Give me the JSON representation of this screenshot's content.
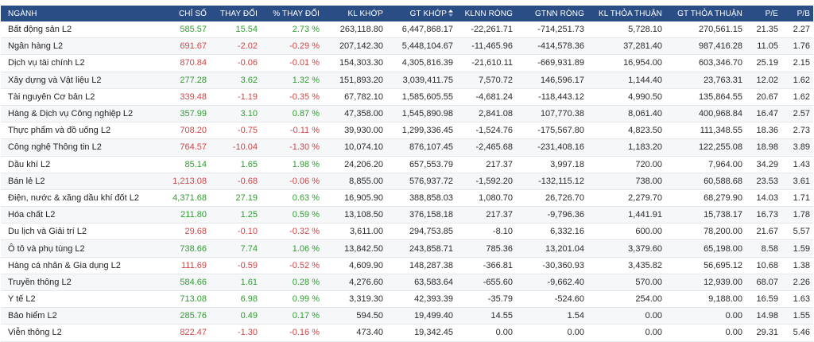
{
  "colors": {
    "header_bg": "#2b4d85",
    "up": "#2e9e2e",
    "down": "#d04545"
  },
  "table": {
    "columns": [
      "NGÀNH",
      "CHỈ SỐ",
      "THAY ĐỔI",
      "% THAY ĐỔI",
      "KL KHỚP",
      "GT KHỚP",
      "KLNN RÒNG",
      "GTNN RÒNG",
      "KL THỎA THUẬN",
      "GT THỎA THUẬN",
      "P/E",
      "P/B"
    ],
    "sort_column": "GT KHỚP",
    "sort_icon": "sort-arrows-icon",
    "rows": [
      {
        "name": "Bất động sản L2",
        "index": "585.57",
        "change": "15.54",
        "pct": "2.73 %",
        "dir": "up",
        "kl_khop": "263,118.80",
        "gt_khop": "6,447,868.17",
        "klnn": "-22,261.71",
        "gtnn": "-714,251.73",
        "kl_tt": "5,728.10",
        "gt_tt": "270,561.15",
        "pe": "21.35",
        "pb": "2.27"
      },
      {
        "name": "Ngân hàng L2",
        "index": "691.67",
        "change": "-2.02",
        "pct": "-0.29 %",
        "dir": "down",
        "kl_khop": "207,142.30",
        "gt_khop": "5,448,104.67",
        "klnn": "-11,465.96",
        "gtnn": "-414,578.36",
        "kl_tt": "37,281.40",
        "gt_tt": "987,416.28",
        "pe": "11.05",
        "pb": "1.76"
      },
      {
        "name": "Dịch vụ tài chính L2",
        "index": "870.84",
        "change": "-0.06",
        "pct": "-0.01 %",
        "dir": "down",
        "kl_khop": "154,303.30",
        "gt_khop": "4,305,816.39",
        "klnn": "-21,610.11",
        "gtnn": "-669,931.89",
        "kl_tt": "16,954.00",
        "gt_tt": "603,346.70",
        "pe": "25.19",
        "pb": "2.15"
      },
      {
        "name": "Xây dựng và Vật liệu L2",
        "index": "277.28",
        "change": "3.62",
        "pct": "1.32 %",
        "dir": "up",
        "kl_khop": "151,893.20",
        "gt_khop": "3,039,411.75",
        "klnn": "7,570.72",
        "gtnn": "146,596.17",
        "kl_tt": "1,144.40",
        "gt_tt": "23,763.31",
        "pe": "12.02",
        "pb": "1.62"
      },
      {
        "name": "Tài nguyên Cơ bản L2",
        "index": "339.48",
        "change": "-1.19",
        "pct": "-0.35 %",
        "dir": "down",
        "kl_khop": "67,782.10",
        "gt_khop": "1,585,605.55",
        "klnn": "-4,681.24",
        "gtnn": "-118,443.12",
        "kl_tt": "4,990.50",
        "gt_tt": "135,864.55",
        "pe": "20.67",
        "pb": "1.62"
      },
      {
        "name": "Hàng & Dịch vụ Công nghiệp L2",
        "index": "357.99",
        "change": "3.10",
        "pct": "0.87 %",
        "dir": "up",
        "kl_khop": "47,358.00",
        "gt_khop": "1,545,890.98",
        "klnn": "2,841.08",
        "gtnn": "107,770.38",
        "kl_tt": "8,061.40",
        "gt_tt": "400,968.84",
        "pe": "16.47",
        "pb": "2.57"
      },
      {
        "name": "Thực phẩm và đồ uống L2",
        "index": "708.20",
        "change": "-0.75",
        "pct": "-0.11 %",
        "dir": "down",
        "kl_khop": "39,930.00",
        "gt_khop": "1,299,336.45",
        "klnn": "-1,524.76",
        "gtnn": "-175,567.80",
        "kl_tt": "4,823.50",
        "gt_tt": "111,348.55",
        "pe": "18.36",
        "pb": "2.73"
      },
      {
        "name": "Công nghệ Thông tin L2",
        "index": "764.57",
        "change": "-10.04",
        "pct": "-1.30 %",
        "dir": "down",
        "kl_khop": "10,074.10",
        "gt_khop": "876,107.45",
        "klnn": "-2,465.68",
        "gtnn": "-231,408.16",
        "kl_tt": "1,183.20",
        "gt_tt": "122,255.08",
        "pe": "18.98",
        "pb": "3.89"
      },
      {
        "name": "Dầu khí L2",
        "index": "85.14",
        "change": "1.65",
        "pct": "1.98 %",
        "dir": "up",
        "kl_khop": "24,206.20",
        "gt_khop": "657,553.79",
        "klnn": "217.37",
        "gtnn": "3,997.18",
        "kl_tt": "720.00",
        "gt_tt": "7,964.00",
        "pe": "34.29",
        "pb": "1.43"
      },
      {
        "name": "Bán lẻ L2",
        "index": "1,213.08",
        "change": "-0.68",
        "pct": "-0.06 %",
        "dir": "down",
        "kl_khop": "8,855.00",
        "gt_khop": "576,937.72",
        "klnn": "-1,592.20",
        "gtnn": "-132,115.12",
        "kl_tt": "738.00",
        "gt_tt": "60,588.68",
        "pe": "23.53",
        "pb": "3.61"
      },
      {
        "name": "Điện, nước & xăng dầu khí đốt L2",
        "index": "4,371.68",
        "change": "27.19",
        "pct": "0.63 %",
        "dir": "up",
        "kl_khop": "16,905.90",
        "gt_khop": "388,858.03",
        "klnn": "1,080.70",
        "gtnn": "26,726.70",
        "kl_tt": "2,279.70",
        "gt_tt": "68,279.90",
        "pe": "14.03",
        "pb": "1.71"
      },
      {
        "name": "Hóa chất L2",
        "index": "211.80",
        "change": "1.25",
        "pct": "0.59 %",
        "dir": "up",
        "kl_khop": "13,108.50",
        "gt_khop": "376,158.18",
        "klnn": "217.37",
        "gtnn": "-9,796.36",
        "kl_tt": "1,441.91",
        "gt_tt": "15,738.17",
        "pe": "16.73",
        "pb": "1.78"
      },
      {
        "name": "Du lịch và Giải trí L2",
        "index": "29.68",
        "change": "-0.10",
        "pct": "-0.32 %",
        "dir": "down",
        "kl_khop": "3,611.00",
        "gt_khop": "294,753.85",
        "klnn": "-8.10",
        "gtnn": "6,332.16",
        "kl_tt": "600.00",
        "gt_tt": "78,200.00",
        "pe": "21.67",
        "pb": "5.57"
      },
      {
        "name": "Ô tô và phụ tùng L2",
        "index": "738.66",
        "change": "7.74",
        "pct": "1.06 %",
        "dir": "up",
        "kl_khop": "13,842.50",
        "gt_khop": "243,858.71",
        "klnn": "785.36",
        "gtnn": "13,201.04",
        "kl_tt": "3,379.60",
        "gt_tt": "65,198.00",
        "pe": "8.58",
        "pb": "1.59"
      },
      {
        "name": "Hàng cá nhân & Gia dụng L2",
        "index": "111.69",
        "change": "-0.59",
        "pct": "-0.52 %",
        "dir": "down",
        "kl_khop": "4,609.90",
        "gt_khop": "148,287.38",
        "klnn": "-366.81",
        "gtnn": "-30,360.93",
        "kl_tt": "3,435.82",
        "gt_tt": "56,695.12",
        "pe": "10.68",
        "pb": "1.38"
      },
      {
        "name": "Truyền thông L2",
        "index": "584.66",
        "change": "1.61",
        "pct": "0.28 %",
        "dir": "up",
        "kl_khop": "4,276.60",
        "gt_khop": "63,583.64",
        "klnn": "-655.60",
        "gtnn": "-9,662.40",
        "kl_tt": "570.00",
        "gt_tt": "12,939.00",
        "pe": "68.07",
        "pb": "2.26"
      },
      {
        "name": "Y tế L2",
        "index": "713.08",
        "change": "6.98",
        "pct": "0.99 %",
        "dir": "up",
        "kl_khop": "3,319.30",
        "gt_khop": "42,393.39",
        "klnn": "-35.79",
        "gtnn": "-524.60",
        "kl_tt": "254.00",
        "gt_tt": "9,188.00",
        "pe": "16.59",
        "pb": "1.63"
      },
      {
        "name": "Bảo hiểm L2",
        "index": "285.76",
        "change": "0.49",
        "pct": "0.17 %",
        "dir": "up",
        "kl_khop": "594.50",
        "gt_khop": "19,499.40",
        "klnn": "14.55",
        "gtnn": "1.54",
        "kl_tt": "0.00",
        "gt_tt": "0.00",
        "pe": "14.98",
        "pb": "1.55"
      },
      {
        "name": "Viễn thông L2",
        "index": "822.47",
        "change": "-1.30",
        "pct": "-0.16 %",
        "dir": "down",
        "kl_khop": "473.40",
        "gt_khop": "19,342.45",
        "klnn": "0.00",
        "gtnn": "0.00",
        "kl_tt": "0.00",
        "gt_tt": "0.00",
        "pe": "29.31",
        "pb": "5.46"
      }
    ]
  }
}
